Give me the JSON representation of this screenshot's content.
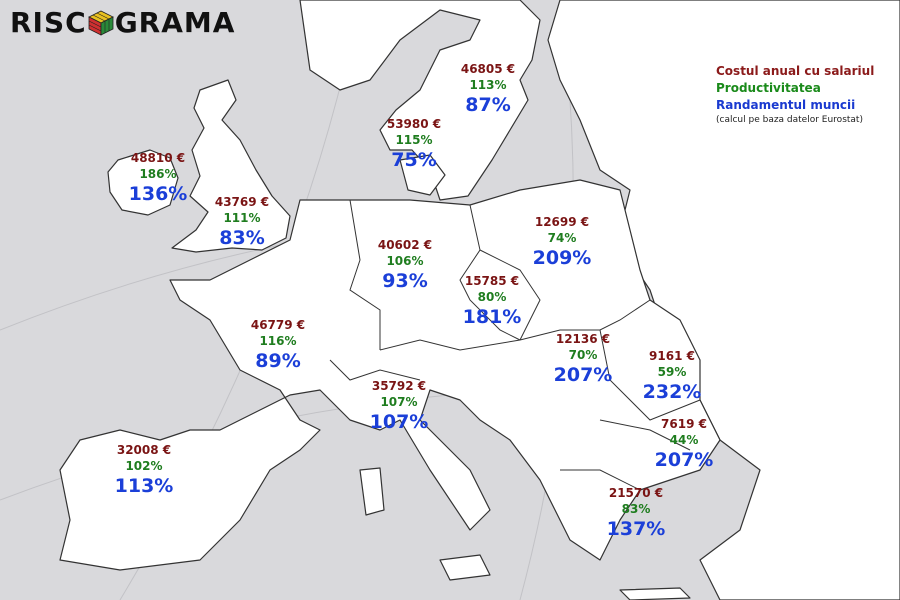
{
  "logo": {
    "text_left": "RISC",
    "text_right": "GRAMA"
  },
  "legend": {
    "cost_label": "Costul anual cu salariul",
    "prod_label": "Productivitatea",
    "rand_label": "Randamentul muncii",
    "note": "(calcul pe baza datelor Eurostat)"
  },
  "colors": {
    "cost": "#7a1414",
    "productivity": "#1f7d1f",
    "yield": "#1b3fd8",
    "land": "#ffffff",
    "sea": "#d9d9dc",
    "border": "#333333"
  },
  "countries": [
    {
      "id": "ireland",
      "cost": "48810 €",
      "prod": "186%",
      "rand": "136%"
    },
    {
      "id": "uk",
      "cost": "43769 €",
      "prod": "111%",
      "rand": "83%"
    },
    {
      "id": "sweden",
      "cost": "46805 €",
      "prod": "113%",
      "rand": "87%"
    },
    {
      "id": "denmark",
      "cost": "53980 €",
      "prod": "115%",
      "rand": "75%"
    },
    {
      "id": "germany",
      "cost": "40602 €",
      "prod": "106%",
      "rand": "93%"
    },
    {
      "id": "poland",
      "cost": "12699 €",
      "prod": "74%",
      "rand": "209%"
    },
    {
      "id": "czechia",
      "cost": "15785 €",
      "prod": "80%",
      "rand": "181%"
    },
    {
      "id": "france",
      "cost": "46779 €",
      "prod": "116%",
      "rand": "89%"
    },
    {
      "id": "hungary",
      "cost": "12136 €",
      "prod": "70%",
      "rand": "207%"
    },
    {
      "id": "romania",
      "cost": "9161 €",
      "prod": "59%",
      "rand": "232%"
    },
    {
      "id": "italy",
      "cost": "35792 €",
      "prod": "107%",
      "rand": "107%"
    },
    {
      "id": "bulgaria",
      "cost": "7619 €",
      "prod": "44%",
      "rand": "207%"
    },
    {
      "id": "spain",
      "cost": "32008 €",
      "prod": "102%",
      "rand": "113%"
    },
    {
      "id": "greece",
      "cost": "21570 €",
      "prod": "83%",
      "rand": "137%"
    }
  ]
}
